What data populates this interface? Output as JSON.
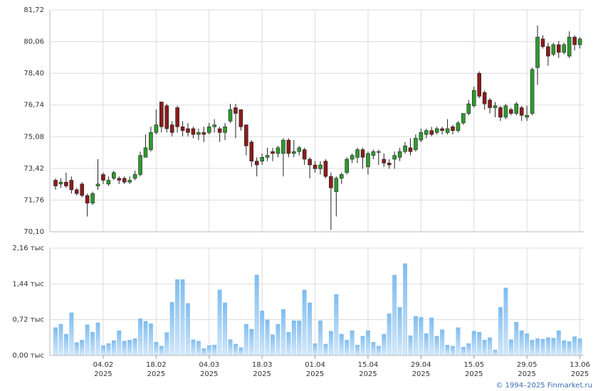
{
  "chart_data": [
    {
      "type": "candlestick",
      "categories": [
        null,
        null,
        null,
        null,
        null,
        null,
        null,
        null,
        null,
        [
          "04.02",
          "2025"
        ],
        null,
        null,
        null,
        null,
        null,
        null,
        null,
        null,
        null,
        [
          "18.02",
          "2025"
        ],
        null,
        null,
        null,
        null,
        null,
        null,
        null,
        null,
        null,
        [
          "04.03",
          "2025"
        ],
        null,
        null,
        null,
        null,
        null,
        null,
        null,
        null,
        null,
        [
          "18.03",
          "2025"
        ],
        null,
        null,
        null,
        null,
        null,
        null,
        null,
        null,
        null,
        [
          "01.04",
          "2025"
        ],
        null,
        null,
        null,
        null,
        null,
        null,
        null,
        null,
        null,
        [
          "15.04",
          "2025"
        ],
        null,
        null,
        null,
        null,
        null,
        null,
        null,
        null,
        null,
        [
          "29.04",
          "2025"
        ],
        null,
        null,
        null,
        null,
        null,
        null,
        null,
        null,
        null,
        [
          "15.05",
          "2025"
        ],
        null,
        null,
        null,
        null,
        null,
        null,
        null,
        null,
        null,
        [
          "29.05",
          "2025"
        ],
        null,
        null,
        null,
        null,
        null,
        null,
        null,
        null,
        null,
        [
          "13.06",
          "2025"
        ]
      ],
      "open": [
        72.8,
        72.6,
        72.7,
        72.8,
        72.3,
        72.6,
        72.0,
        71.6,
        72.5,
        73.1,
        72.6,
        72.9,
        72.9,
        72.9,
        72.7,
        72.9,
        73.1,
        74.0,
        74.4,
        75.3,
        76.9,
        76.7,
        75.7,
        76.6,
        75.6,
        75.5,
        75.5,
        75.2,
        75.3,
        75.3,
        75.6,
        75.5,
        75.3,
        75.9,
        76.6,
        76.5,
        75.7,
        74.8,
        73.8,
        73.8,
        74.0,
        74.3,
        74.2,
        74.2,
        74.9,
        74.2,
        74.3,
        74.4,
        73.9,
        73.6,
        73.4,
        73.8,
        73.0,
        72.2,
        72.9,
        73.2,
        73.9,
        74.0,
        74.4,
        73.5,
        74.1,
        74.3,
        73.9,
        73.7,
        73.9,
        74.0,
        74.3,
        74.5,
        74.4,
        74.9,
        75.2,
        75.4,
        75.3,
        75.5,
        75.3,
        75.6,
        75.4,
        75.8,
        76.3,
        76.7,
        78.4,
        77.4,
        77.0,
        76.6,
        76.6,
        76.1,
        76.5,
        76.3,
        76.6,
        76.1,
        76.3,
        78.7,
        80.2,
        79.8,
        79.4,
        79.9,
        79.5,
        79.3,
        80.3,
        79.9
      ],
      "high": [
        72.9,
        72.9,
        73.2,
        73.0,
        72.4,
        72.7,
        72.1,
        72.2,
        73.9,
        73.2,
        73.0,
        73.3,
        73.0,
        73.0,
        73.0,
        73.3,
        74.3,
        75.2,
        75.6,
        76.5,
        76.9,
        76.8,
        75.9,
        76.7,
        75.9,
        75.8,
        75.6,
        75.5,
        75.6,
        75.8,
        76.0,
        75.6,
        75.8,
        76.8,
        76.8,
        76.5,
        75.7,
        74.9,
        74.0,
        74.2,
        74.5,
        74.5,
        74.6,
        75.0,
        75.0,
        74.9,
        74.6,
        74.5,
        74.0,
        73.8,
        73.8,
        73.9,
        73.2,
        73.0,
        73.2,
        74.0,
        74.2,
        74.5,
        74.5,
        74.3,
        74.4,
        74.4,
        74.2,
        73.9,
        74.3,
        74.5,
        74.8,
        75.0,
        75.2,
        75.5,
        75.5,
        75.6,
        75.6,
        75.6,
        76.0,
        75.7,
        75.9,
        76.3,
        77.0,
        77.7,
        78.5,
        77.5,
        77.1,
        76.9,
        76.7,
        76.8,
        76.6,
        76.9,
        76.7,
        76.7,
        78.7,
        80.9,
        80.4,
        80.0,
        80.0,
        80.1,
        80.0,
        80.6,
        80.4,
        80.3
      ],
      "low": [
        72.3,
        72.4,
        72.4,
        72.1,
        72.0,
        71.9,
        70.9,
        71.5,
        72.3,
        72.6,
        72.5,
        72.8,
        72.6,
        72.6,
        72.6,
        72.8,
        73.0,
        74.0,
        74.3,
        75.2,
        75.3,
        75.3,
        75.1,
        75.3,
        75.1,
        75.1,
        75.0,
        74.9,
        74.8,
        75.2,
        75.3,
        74.8,
        74.9,
        75.8,
        75.0,
        75.4,
        74.1,
        73.5,
        73.0,
        73.6,
        73.8,
        73.8,
        74.0,
        73.0,
        74.0,
        74.0,
        74.1,
        73.6,
        72.9,
        73.2,
        73.1,
        72.9,
        70.2,
        70.9,
        72.6,
        73.1,
        73.7,
        73.7,
        73.4,
        73.1,
        73.9,
        73.6,
        73.5,
        73.4,
        73.4,
        73.8,
        74.2,
        74.1,
        74.3,
        74.8,
        75.0,
        75.1,
        75.2,
        75.2,
        75.2,
        75.2,
        75.3,
        75.7,
        76.2,
        76.6,
        77.1,
        76.5,
        76.3,
        76.1,
        75.9,
        76.0,
        76.2,
        76.2,
        75.9,
        75.9,
        76.2,
        77.8,
        79.7,
        78.8,
        79.3,
        79.2,
        79.4,
        79.2,
        79.6,
        79.7
      ],
      "close": [
        72.5,
        72.7,
        72.5,
        72.3,
        72.1,
        72.0,
        71.6,
        72.1,
        72.6,
        72.8,
        72.8,
        73.2,
        72.8,
        72.7,
        72.8,
        73.1,
        74.1,
        74.5,
        75.3,
        75.7,
        75.6,
        75.5,
        75.3,
        75.6,
        75.4,
        75.3,
        75.2,
        75.3,
        75.2,
        75.6,
        75.7,
        75.3,
        75.6,
        76.5,
        76.3,
        75.6,
        74.6,
        73.8,
        73.6,
        74.0,
        74.1,
        74.2,
        74.5,
        74.9,
        74.2,
        74.3,
        74.5,
        73.9,
        73.6,
        73.4,
        73.6,
        73.0,
        72.4,
        72.9,
        73.1,
        73.9,
        74.1,
        74.4,
        74.0,
        74.2,
        74.3,
        74.3,
        73.7,
        73.6,
        74.1,
        74.3,
        74.6,
        74.3,
        75.0,
        75.3,
        75.4,
        75.2,
        75.5,
        75.4,
        75.5,
        75.4,
        75.8,
        76.3,
        76.8,
        77.5,
        77.2,
        76.8,
        76.6,
        76.7,
        76.1,
        76.7,
        76.3,
        76.8,
        76.2,
        76.2,
        78.6,
        80.3,
        79.8,
        79.3,
        79.9,
        79.5,
        79.9,
        80.3,
        79.9,
        80.2
      ],
      "up_color": "#2e9a2e",
      "down_color": "#8b1c1c",
      "ylim": [
        70.1,
        81.72
      ],
      "yticks": [
        {
          "value": 70.1,
          "label": "70,10"
        },
        {
          "value": 71.76,
          "label": "71,76"
        },
        {
          "value": 73.42,
          "label": "73,42"
        },
        {
          "value": 75.08,
          "label": "75,08"
        },
        {
          "value": 76.74,
          "label": "76,74"
        },
        {
          "value": 78.4,
          "label": "78,40"
        },
        {
          "value": 80.06,
          "label": "80,06"
        },
        {
          "value": 81.72,
          "label": "81,72"
        }
      ],
      "grid": true
    },
    {
      "type": "bar",
      "values": [
        0.56,
        0.63,
        0.43,
        0.86,
        0.26,
        0.31,
        0.62,
        0.47,
        0.66,
        0.2,
        0.24,
        0.3,
        0.5,
        0.29,
        0.31,
        0.34,
        0.74,
        0.69,
        0.64,
        0.27,
        0.19,
        0.46,
        1.07,
        1.53,
        1.53,
        1.05,
        0.32,
        0.29,
        0.14,
        0.2,
        0.21,
        1.32,
        1.06,
        0.32,
        0.23,
        0.16,
        0.63,
        0.53,
        1.62,
        0.9,
        0.72,
        0.42,
        0.63,
        0.93,
        0.47,
        0.7,
        0.7,
        1.32,
        1.06,
        0.24,
        0.7,
        0.23,
        0.49,
        1.23,
        0.43,
        0.31,
        0.5,
        0.21,
        0.39,
        0.5,
        0.27,
        0.19,
        0.43,
        0.84,
        1.62,
        0.97,
        1.85,
        0.4,
        0.79,
        0.77,
        0.44,
        0.76,
        0.39,
        0.52,
        0.21,
        0.19,
        0.56,
        0.17,
        0.24,
        0.49,
        0.47,
        0.31,
        0.36,
        0.11,
        0.97,
        1.36,
        0.32,
        0.67,
        0.5,
        0.44,
        0.31,
        0.34,
        0.33,
        0.36,
        0.35,
        0.5,
        0.3,
        0.28,
        0.38,
        0.34
      ],
      "color": "#7fbcee",
      "ylim": [
        0,
        2.16
      ],
      "yticks": [
        {
          "value": 0,
          "label": "0,00 тыс"
        },
        {
          "value": 0.72,
          "label": "0,72 тыс"
        },
        {
          "value": 1.44,
          "label": "1,44 тыс"
        },
        {
          "value": 2.16,
          "label": "2,16 тыс"
        }
      ],
      "grid": true
    }
  ],
  "credit": "© 1994–2025 Finmarket.ru"
}
